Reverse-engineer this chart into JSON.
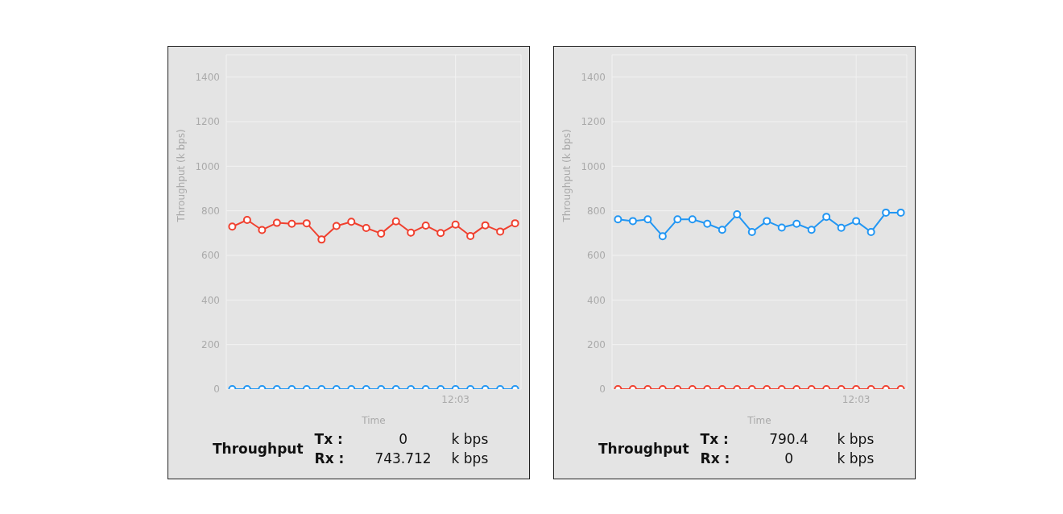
{
  "chart_data": [
    {
      "type": "line",
      "ylabel": "Throughput (k bps)",
      "xlabel": "Time",
      "categories": [
        null,
        null,
        null,
        null,
        null,
        null,
        null,
        null,
        null,
        null,
        null,
        null,
        null,
        null,
        null,
        "12:03",
        null,
        null,
        null,
        null
      ],
      "series": [
        {
          "color": "#f0402f",
          "values": [
            729,
            759,
            714,
            746,
            742,
            744,
            671,
            732,
            751,
            723,
            698,
            753,
            702,
            734,
            700,
            738,
            687,
            735,
            707,
            744
          ]
        },
        {
          "color": "#2196f3",
          "values": [
            0,
            0,
            0,
            0,
            0,
            0,
            0,
            0,
            0,
            0,
            0,
            0,
            0,
            0,
            0,
            0,
            0,
            0,
            0,
            0
          ]
        }
      ],
      "ylim": [
        0,
        1500
      ],
      "yticks": [
        0,
        200,
        400,
        600,
        800,
        1000,
        1200,
        1400
      ],
      "grid": true,
      "marker": "circle",
      "line_style": "solid",
      "annotations": [
        "Throughput",
        "Tx :",
        "0",
        "k bps",
        "Rx :",
        "743.712",
        "k bps"
      ]
    },
    {
      "type": "line",
      "ylabel": "Throughput (k bps)",
      "xlabel": "Time",
      "categories": [
        null,
        null,
        null,
        null,
        null,
        null,
        null,
        null,
        null,
        null,
        null,
        null,
        null,
        null,
        null,
        null,
        "12:03",
        null,
        null,
        null
      ],
      "series": [
        {
          "color": "#2196f3",
          "values": [
            762,
            754,
            762,
            686,
            762,
            762,
            742,
            715,
            784,
            705,
            754,
            725,
            742,
            715,
            773,
            724,
            754,
            705,
            792,
            792
          ]
        },
        {
          "color": "#f0402f",
          "values": [
            0,
            0,
            0,
            0,
            0,
            0,
            0,
            0,
            0,
            0,
            0,
            0,
            0,
            0,
            0,
            0,
            0,
            0,
            0,
            0
          ]
        }
      ],
      "ylim": [
        0,
        1500
      ],
      "yticks": [
        0,
        200,
        400,
        600,
        800,
        1000,
        1200,
        1400
      ],
      "grid": true,
      "marker": "circle",
      "line_style": "solid",
      "annotations": [
        "Throughput",
        "Tx :",
        "790.4",
        "k bps",
        "Rx :",
        "0",
        "k bps"
      ]
    }
  ]
}
